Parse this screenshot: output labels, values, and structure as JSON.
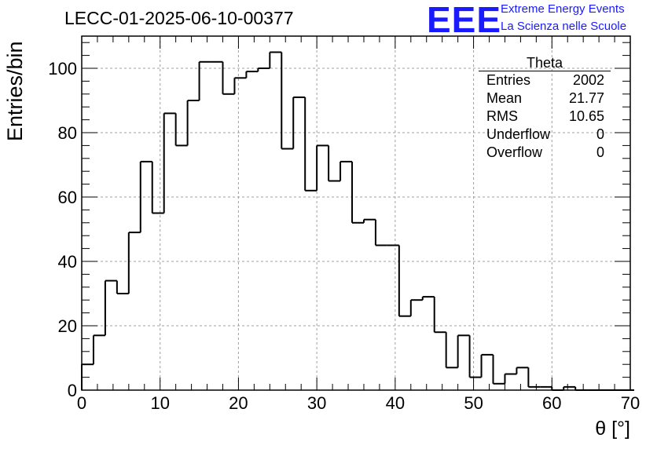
{
  "chart_data": {
    "type": "bar",
    "title": "LECC-01-2025-06-10-00377",
    "xlabel": "θ [°]",
    "ylabel": "Entries/bin",
    "xlim": [
      0,
      70
    ],
    "ylim": [
      0,
      110
    ],
    "bin_width": 1.5,
    "x_ticks": [
      "0",
      "10",
      "20",
      "30",
      "40",
      "50",
      "60",
      "70"
    ],
    "y_ticks": [
      "0",
      "20",
      "40",
      "60",
      "80",
      "100"
    ],
    "grid": true,
    "values": [
      8,
      17,
      34,
      30,
      49,
      71,
      55,
      86,
      76,
      90,
      102,
      102,
      92,
      97,
      99,
      100,
      105,
      75,
      91,
      62,
      76,
      65,
      71,
      52,
      53,
      45,
      45,
      23,
      28,
      29,
      18,
      7,
      17,
      4,
      11,
      2,
      5,
      7,
      1,
      1,
      0,
      1,
      0,
      0,
      0,
      0,
      0
    ]
  },
  "logo": {
    "text": "EEE",
    "line1": "Extreme Energy Events",
    "line2": "La Scienza nelle Scuole"
  },
  "stats": {
    "title": "Theta",
    "rows": [
      {
        "label": "Entries",
        "value": "2002"
      },
      {
        "label": "Mean",
        "value": "21.77"
      },
      {
        "label": "RMS",
        "value": "10.65"
      },
      {
        "label": "Underflow",
        "value": "0"
      },
      {
        "label": "Overflow",
        "value": "0"
      }
    ]
  },
  "colors": {
    "logo": "#1a1aff",
    "line": "#000000",
    "grid": "#a0a0a0"
  }
}
